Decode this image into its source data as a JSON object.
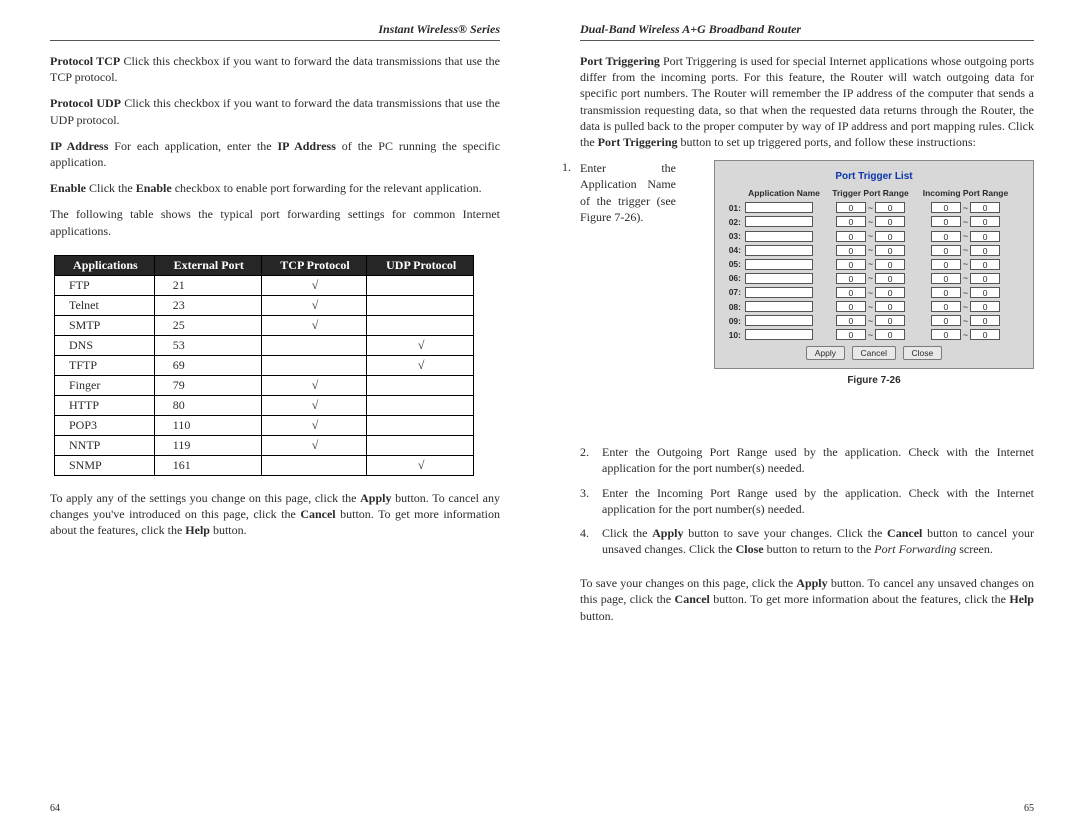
{
  "left": {
    "running_head": "Instant Wireless® Series",
    "page_num": "64",
    "p1a": "Protocol TCP",
    "p1b": "  Click this checkbox if you want to forward the data transmissions that use the TCP protocol.",
    "p2a": "Protocol UDP",
    "p2b": " Click this checkbox if you want to forward the data transmissions that use the UDP protocol.",
    "p3a": "IP Address",
    "p3b": "  For each application, enter the ",
    "p3c": "IP Address",
    "p3d": " of the PC running the specific application.",
    "p4a": "Enable",
    "p4b": "  Click the ",
    "p4c": "Enable",
    "p4d": " checkbox to enable port forwarding for the relevant application.",
    "p5": "The following table shows the typical port forwarding settings for common Internet applications.",
    "p6a": "To apply any of the settings you change on this page, click the ",
    "p6b": "Apply",
    "p6c": " button.  To cancel any changes you've introduced on this page, click the ",
    "p6d": "Cancel",
    "p6e": " button. To get more information about the features, click the ",
    "p6f": "Help",
    "p6g": " button.",
    "table": {
      "headers": [
        "Applications",
        "External Port",
        "TCP Protocol",
        "UDP Protocol"
      ],
      "rows": [
        {
          "app": "FTP",
          "port": "21",
          "tcp": "√",
          "udp": ""
        },
        {
          "app": "Telnet",
          "port": "23",
          "tcp": "√",
          "udp": ""
        },
        {
          "app": "SMTP",
          "port": "25",
          "tcp": "√",
          "udp": ""
        },
        {
          "app": "DNS",
          "port": "53",
          "tcp": "",
          "udp": "√"
        },
        {
          "app": "TFTP",
          "port": "69",
          "tcp": "",
          "udp": "√"
        },
        {
          "app": "Finger",
          "port": "79",
          "tcp": "√",
          "udp": ""
        },
        {
          "app": "HTTP",
          "port": "80",
          "tcp": "√",
          "udp": ""
        },
        {
          "app": "POP3",
          "port": "110",
          "tcp": "√",
          "udp": ""
        },
        {
          "app": "NNTP",
          "port": "119",
          "tcp": "√",
          "udp": ""
        },
        {
          "app": "SNMP",
          "port": "161",
          "tcp": "",
          "udp": "√"
        }
      ]
    }
  },
  "right": {
    "running_head": "Dual-Band Wireless A+G Broadband Router",
    "page_num": "65",
    "p1a": "Port Triggering",
    "p1b": "  Port Triggering is used for special Internet applications whose outgoing ports differ from the incoming ports. For this feature, the Router will watch outgoing data for specific port numbers. The Router will remember the IP address of the computer that sends a transmission requesting data, so that when the requested data returns through the Router, the data is pulled back to the proper computer by way of IP address and port mapping rules. Click the ",
    "p1c": "Port Triggering",
    "p1d": " button to set up triggered ports, and follow these instructions:",
    "step1_num": "1.",
    "step1_text": "Enter the Application Name of the trigger (see Figure 7-26).",
    "fig_caption": "Figure 7-26",
    "trigger": {
      "title": "Port Trigger List",
      "head_app": "Application Name",
      "head_tpr": "Trigger Port Range",
      "head_ipr": "Incoming Port Range",
      "row_labels": [
        "01:",
        "02:",
        "03:",
        "04:",
        "05:",
        "06:",
        "07:",
        "08:",
        "09:",
        "10:"
      ],
      "port_zero": "0",
      "btn_apply": "Apply",
      "btn_cancel": "Cancel",
      "btn_close": "Close"
    },
    "steps": [
      {
        "num": "2.",
        "text": "Enter the Outgoing Port Range used by the application. Check with the Internet application for the port number(s) needed."
      },
      {
        "num": "3.",
        "text": "Enter the Incoming Port Range used by the application. Check with the Internet application for the port number(s) needed."
      }
    ],
    "step4": {
      "num": "4.",
      "a": "Click the ",
      "b": "Apply",
      "c": " button to save your changes. Click the ",
      "d": "Cancel",
      "e": " button to cancel your unsaved changes. Click the ",
      "f": "Close",
      "g": " button to return to the ",
      "h": "Port Forwarding",
      "i": " screen."
    },
    "p2a": "To save your changes on this page, click the ",
    "p2b": "Apply",
    "p2c": " button. To cancel any unsaved changes on this page, click the ",
    "p2d": "Cancel",
    "p2e": " button. To get more information about the features, click the ",
    "p2f": "Help",
    "p2g": " button."
  }
}
